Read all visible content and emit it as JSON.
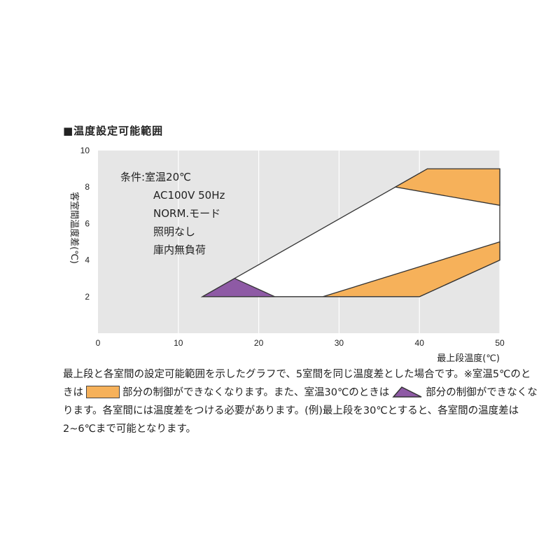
{
  "title": "■温度設定可能範囲",
  "colors": {
    "plot_bg": "#e6e6e6",
    "white_region": "#ffffff",
    "orange": "#f6b15a",
    "purple": "#8e5aa5",
    "outline": "#333333"
  },
  "conditions": [
    "条件:室温20℃",
    "AC100V  50Hz",
    "NORM.モード",
    "照明なし",
    "庫内無負荷"
  ],
  "caption": {
    "part1": "最上段と各室間の設定可能範囲を示したグラフで、5室間を同じ温度差とした場合です。※室温5℃のときは",
    "part2": "部分の制御ができなくなります。また、室温30℃のときは",
    "part3": "部分の制御ができなくなります。各室間には温度差をつける必要があります。(例)最上段を30℃とすると、各室間の温度差は2~6℃まで可能となります。"
  },
  "chart_data": {
    "type": "area",
    "xlabel": "最上段温度(℃)",
    "ylabel": "客室間温度差(℃)",
    "xlim": [
      0,
      50
    ],
    "ylim": [
      0,
      10
    ],
    "x_ticks": [
      "0",
      "10",
      "20",
      "30",
      "40",
      "50"
    ],
    "y_ticks": [
      "2",
      "4",
      "6",
      "8",
      "10"
    ],
    "grid": "vertical",
    "regions": [
      {
        "color": "white",
        "points": [
          [
            13,
            2
          ],
          [
            17,
            3
          ],
          [
            41,
            9
          ],
          [
            50,
            9
          ],
          [
            50,
            4
          ],
          [
            40,
            2
          ]
        ]
      },
      {
        "color": "orange",
        "points": [
          [
            37,
            8
          ],
          [
            41,
            9
          ],
          [
            50,
            9
          ],
          [
            50,
            7
          ]
        ]
      },
      {
        "color": "orange",
        "points": [
          [
            28,
            2
          ],
          [
            40,
            2
          ],
          [
            50,
            4
          ],
          [
            50,
            5
          ]
        ]
      },
      {
        "color": "purple",
        "points": [
          [
            13,
            2
          ],
          [
            17,
            3
          ],
          [
            22,
            2
          ]
        ]
      }
    ]
  }
}
